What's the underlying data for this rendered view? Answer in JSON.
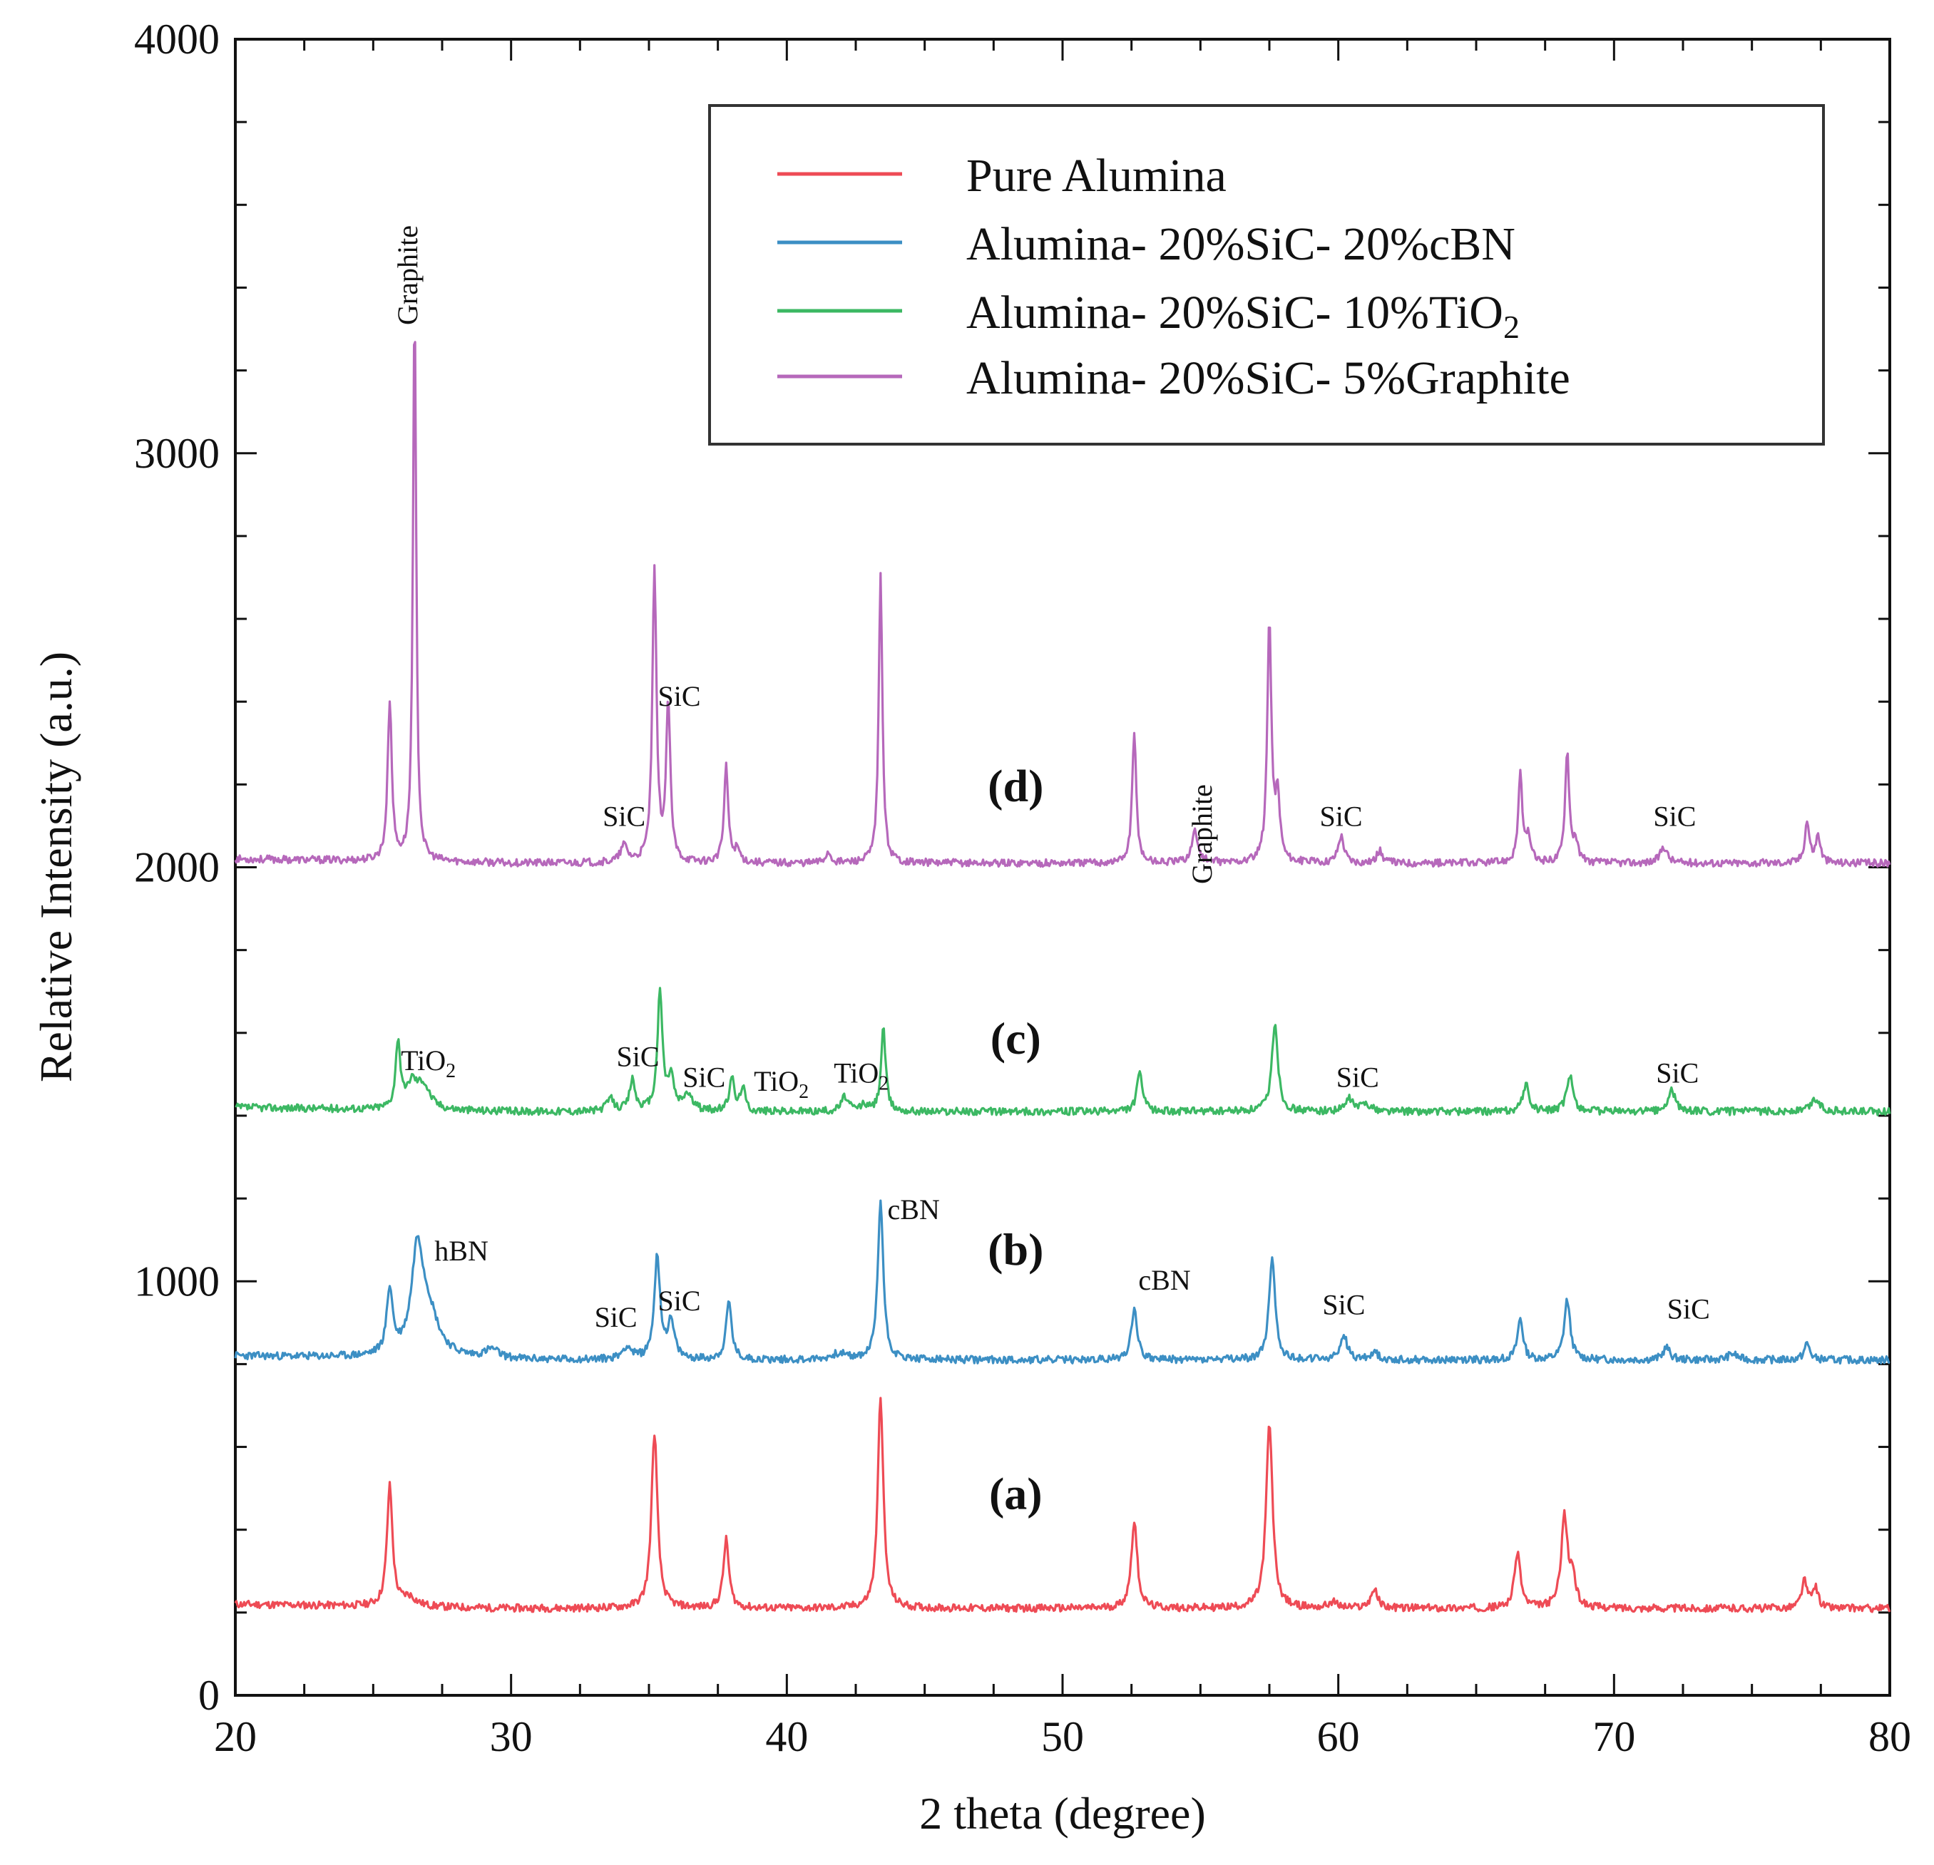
{
  "chart_data": {
    "type": "line",
    "title": "",
    "xlabel": "2 theta (degree)",
    "ylabel": "Relative Intensity (a.u.)",
    "xlim": [
      20,
      80
    ],
    "ylim": [
      0,
      4000
    ],
    "xticks": [
      20,
      30,
      40,
      50,
      60,
      70,
      80
    ],
    "yticks": [
      0,
      1000,
      2000,
      3000,
      4000
    ],
    "xtick_labels": [
      "20",
      "30",
      "40",
      "50",
      "60",
      "70",
      "80"
    ],
    "ytick_labels": [
      "0",
      "1000",
      "2000",
      "3000",
      "4000"
    ],
    "legend_position": "top-right",
    "legend": {
      "pure": "Pure Alumina",
      "cbn": "Alumina- 20%SiC- 20%cBN",
      "tio2_main": "Alumina- 20%SiC- 10%TiO",
      "tio2_sub": "2",
      "graphite": "Alumina- 20%SiC- 5%Graphite"
    },
    "series": [
      {
        "name": "Pure Alumina",
        "panel": "(a)",
        "color": "#ee4b55",
        "baseline": 210,
        "peaks": [
          [
            25.6,
            290,
            0.12
          ],
          [
            26.3,
            22,
            0.3
          ],
          [
            35.2,
            425,
            0.13
          ],
          [
            37.8,
            165,
            0.12
          ],
          [
            43.4,
            515,
            0.12
          ],
          [
            52.6,
            210,
            0.13
          ],
          [
            57.5,
            445,
            0.14
          ],
          [
            59.8,
            14,
            0.2
          ],
          [
            61.3,
            45,
            0.15
          ],
          [
            66.5,
            135,
            0.13
          ],
          [
            68.2,
            220,
            0.14
          ],
          [
            68.5,
            70,
            0.12
          ],
          [
            76.9,
            65,
            0.12
          ],
          [
            77.3,
            50,
            0.12
          ]
        ],
        "seed": 11
      },
      {
        "name": "Alumina- 20%SiC- 20%cBN",
        "panel": "(b)",
        "color": "#3c8fc4",
        "baseline": 810,
        "peaks": [
          [
            25.6,
            155,
            0.13
          ],
          [
            26.6,
            240,
            0.25
          ],
          [
            27.0,
            100,
            0.45
          ],
          [
            29.3,
            22,
            0.3
          ],
          [
            34.2,
            30,
            0.2
          ],
          [
            35.3,
            245,
            0.13
          ],
          [
            35.8,
            85,
            0.15
          ],
          [
            37.9,
            140,
            0.12
          ],
          [
            41.9,
            15,
            0.3
          ],
          [
            43.4,
            385,
            0.12
          ],
          [
            52.6,
            125,
            0.13
          ],
          [
            57.6,
            250,
            0.13
          ],
          [
            60.2,
            60,
            0.15
          ],
          [
            61.3,
            20,
            0.15
          ],
          [
            66.6,
            100,
            0.12
          ],
          [
            68.3,
            145,
            0.13
          ],
          [
            71.9,
            30,
            0.15
          ],
          [
            74.3,
            15,
            0.2
          ],
          [
            77.0,
            40,
            0.12
          ]
        ],
        "seed": 23
      },
      {
        "name": "Alumina- 20%SiC- 10%TiO2",
        "panel": "(c)",
        "color": "#3cb863",
        "baseline": 1410,
        "peaks": [
          [
            25.9,
            165,
            0.1
          ],
          [
            26.4,
            55,
            0.2
          ],
          [
            26.8,
            60,
            0.3
          ],
          [
            33.6,
            30,
            0.15
          ],
          [
            34.4,
            75,
            0.12
          ],
          [
            35.4,
            285,
            0.11
          ],
          [
            35.8,
            80,
            0.12
          ],
          [
            36.4,
            40,
            0.2
          ],
          [
            38.0,
            85,
            0.1
          ],
          [
            38.4,
            60,
            0.1
          ],
          [
            42.1,
            35,
            0.15
          ],
          [
            42.8,
            15,
            0.15
          ],
          [
            43.5,
            200,
            0.1
          ],
          [
            52.8,
            95,
            0.12
          ],
          [
            57.7,
            215,
            0.13
          ],
          [
            60.4,
            30,
            0.15
          ],
          [
            61.0,
            20,
            0.2
          ],
          [
            66.8,
            65,
            0.13
          ],
          [
            68.4,
            90,
            0.13
          ],
          [
            72.1,
            50,
            0.15
          ],
          [
            77.3,
            30,
            0.2
          ]
        ],
        "seed": 37
      },
      {
        "name": "Alumina- 20%SiC- 5%Graphite",
        "panel": "(d)",
        "color": "#b668bb",
        "baseline": 2010,
        "peaks": [
          [
            25.6,
            385,
            0.09
          ],
          [
            26.5,
            1345,
            0.07
          ],
          [
            34.1,
            40,
            0.15
          ],
          [
            35.2,
            700,
            0.09
          ],
          [
            35.7,
            380,
            0.09
          ],
          [
            37.8,
            230,
            0.09
          ],
          [
            38.2,
            30,
            0.12
          ],
          [
            41.5,
            25,
            0.12
          ],
          [
            43.4,
            695,
            0.08
          ],
          [
            52.6,
            310,
            0.09
          ],
          [
            54.8,
            75,
            0.14
          ],
          [
            57.5,
            580,
            0.09
          ],
          [
            57.8,
            150,
            0.1
          ],
          [
            60.1,
            65,
            0.13
          ],
          [
            61.5,
            30,
            0.12
          ],
          [
            66.6,
            210,
            0.09
          ],
          [
            66.9,
            60,
            0.1
          ],
          [
            68.3,
            270,
            0.09
          ],
          [
            68.6,
            50,
            0.1
          ],
          [
            71.8,
            40,
            0.15
          ],
          [
            77.0,
            100,
            0.1
          ],
          [
            77.4,
            65,
            0.1
          ]
        ],
        "seed": 53
      }
    ],
    "panel_labels": [
      {
        "text": "(a)",
        "x": 48.3,
        "y": 450
      },
      {
        "text": "(b)",
        "x": 48.3,
        "y": 1040
      },
      {
        "text": "(c)",
        "x": 48.3,
        "y": 1550
      },
      {
        "text": "(d)",
        "x": 48.3,
        "y": 2160
      }
    ],
    "annotations": [
      {
        "text": "Graphite",
        "x": 26.6,
        "y": 3430,
        "rotate": true
      },
      {
        "text": "SiC",
        "x": 34.1,
        "y": 2100
      },
      {
        "text": "SiC",
        "x": 36.1,
        "y": 2390
      },
      {
        "text": "Graphite",
        "x": 55.4,
        "y": 2080,
        "rotate": true
      },
      {
        "text": "SiC",
        "x": 60.1,
        "y": 2100
      },
      {
        "text": "SiC",
        "x": 72.2,
        "y": 2100
      },
      {
        "text": "TiO",
        "sub": "2",
        "x": 27.0,
        "y": 1510
      },
      {
        "text": "SiC",
        "x": 34.6,
        "y": 1520
      },
      {
        "text": "SiC",
        "x": 37.0,
        "y": 1470
      },
      {
        "text": "TiO",
        "sub": "2",
        "x": 39.8,
        "y": 1460
      },
      {
        "text": "TiO",
        "sub": "2",
        "x": 42.7,
        "y": 1480
      },
      {
        "text": "SiC",
        "x": 60.7,
        "y": 1470
      },
      {
        "text": "SiC",
        "x": 72.3,
        "y": 1480
      },
      {
        "text": "hBN",
        "x": 28.2,
        "y": 1050
      },
      {
        "text": "SiC",
        "x": 33.8,
        "y": 890
      },
      {
        "text": "SiC",
        "x": 36.1,
        "y": 930
      },
      {
        "text": "cBN",
        "x": 44.6,
        "y": 1150
      },
      {
        "text": "cBN",
        "x": 53.7,
        "y": 980
      },
      {
        "text": "SiC",
        "x": 60.2,
        "y": 920
      },
      {
        "text": "SiC",
        "x": 72.7,
        "y": 910
      }
    ]
  }
}
